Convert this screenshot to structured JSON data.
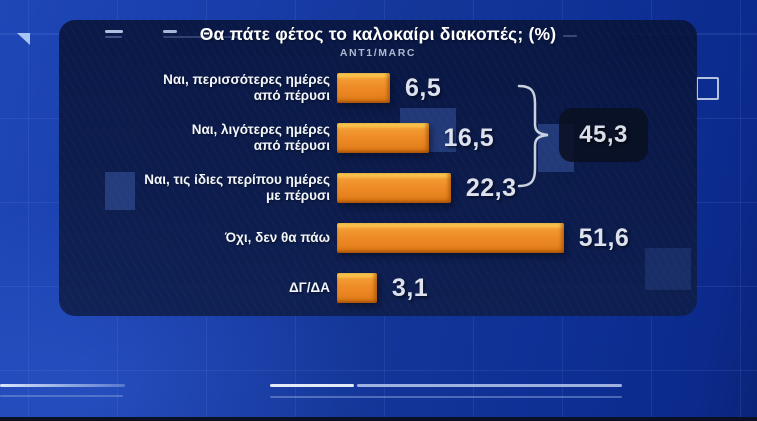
{
  "chart_data": {
    "type": "bar",
    "orientation": "horizontal",
    "title": "Θα πάτε φέτος το καλοκαίρι διακοπές; (%)",
    "source": "ANT1/MARC",
    "unit": "percent",
    "decimal_style": "comma",
    "categories": [
      "Ναι, περισσότερες ημέρες\nαπό πέρυσι",
      "Ναι, λιγότερες ημέρες\nαπό πέρυσι",
      "Ναι, τις ίδιες περίπου ημέρες\nμε πέρυσι",
      "Όχι, δεν θα πάω",
      "ΔΓ/ΔΑ"
    ],
    "values": [
      6.5,
      16.5,
      22.3,
      51.6,
      3.1
    ],
    "value_labels": [
      "6,5",
      "16,5",
      "22,3",
      "51,6",
      "3,1"
    ],
    "group_bracket": {
      "label": "45,3",
      "value": 45.3,
      "covers_rows": [
        0,
        1,
        2
      ]
    },
    "xlim": [
      0,
      60
    ],
    "grid": false,
    "legend": false,
    "bar_color": "#ee8c26",
    "bar_highlight_color": "#ffd75c",
    "value_text_color": "#dde2ec",
    "panel_color": "#0b1840",
    "background_color": "#143699"
  },
  "icons": {
    "corner_triangle": "triangle pointing bottom-right, light blue",
    "frame_square": "square outline, light gray"
  }
}
